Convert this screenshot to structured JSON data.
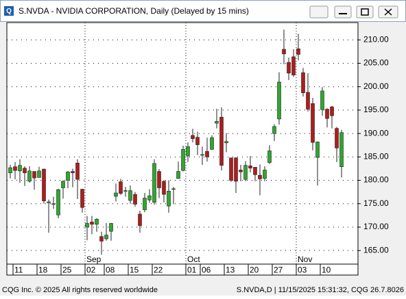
{
  "window_title": "S.NVDA - NVIDIA CORPORATION, Daily (Delayed by 15 mins)",
  "footer": {
    "left": "CQG Inc. © 2025 All rights reserved worldwide",
    "right": "S.NVDA,D | 11/15/2025 15:31:32, CQG 26.7.8026"
  },
  "chart_data": {
    "type": "candlestick",
    "categories": [
      null,
      "11",
      null,
      null,
      null,
      null,
      "18",
      null,
      null,
      null,
      null,
      "25",
      null,
      null,
      null,
      null,
      "02",
      null,
      null,
      null,
      "08",
      null,
      null,
      null,
      null,
      "15",
      null,
      null,
      null,
      null,
      "22",
      null,
      null,
      null,
      null,
      null,
      null,
      "01",
      null,
      null,
      "06",
      null,
      null,
      null,
      null,
      "13",
      null,
      null,
      null,
      null,
      "20",
      null,
      null,
      null,
      null,
      "27",
      null,
      null,
      null,
      null,
      "03",
      null,
      null,
      null,
      null,
      "10",
      null,
      null,
      null,
      null
    ],
    "months": [
      null,
      null,
      null,
      null,
      null,
      null,
      null,
      null,
      null,
      null,
      null,
      null,
      null,
      null,
      null,
      null,
      "Sep",
      null,
      null,
      null,
      null,
      null,
      null,
      null,
      null,
      null,
      null,
      null,
      null,
      null,
      null,
      null,
      null,
      null,
      null,
      null,
      null,
      "Oct",
      null,
      null,
      null,
      null,
      null,
      null,
      null,
      null,
      null,
      null,
      null,
      null,
      null,
      null,
      null,
      null,
      null,
      null,
      null,
      null,
      null,
      null,
      "Nov",
      null,
      null,
      null,
      null,
      null,
      null,
      null,
      null,
      null
    ],
    "open": [
      181.6,
      182.9,
      182.0,
      182.6,
      179.8,
      181.9,
      180.6,
      182.4,
      175.2,
      174.9,
      172.6,
      178.4,
      180.0,
      181.9,
      183.7,
      178.1,
      170.0,
      171.1,
      170.6,
      168.0,
      167.5,
      169.1,
      176.6,
      179.7,
      177.8,
      175.7,
      177.0,
      172.8,
      173.7,
      175.8,
      175.3,
      181.9,
      179.8,
      174.5,
      178.2,
      180.4,
      182.1,
      185.2,
      189.6,
      189.2,
      185.5,
      186.2,
      186.6,
      192.2,
      193.5,
      188.0,
      184.8,
      184.8,
      182.2,
      180.2,
      183.1,
      182.8,
      181.1,
      180.4,
      183.8,
      190.0,
      193.1,
      208.0,
      205.2,
      206.4,
      208.1,
      203.0,
      198.8,
      196.4,
      184.9,
      195.1,
      195.2,
      195.7,
      191.1,
      182.9
    ],
    "high": [
      183.3,
      183.9,
      184.5,
      183.0,
      183.0,
      181.9,
      182.9,
      182.5,
      175.9,
      176.5,
      178.2,
      180.0,
      182.0,
      182.5,
      184.5,
      178.2,
      172.4,
      172.4,
      171.9,
      169.0,
      170.9,
      170.9,
      179.3,
      180.3,
      178.6,
      178.9,
      177.5,
      173.5,
      177.3,
      178.1,
      184.5,
      182.4,
      180.0,
      180.0,
      178.6,
      184.0,
      187.4,
      188.1,
      191.0,
      190.4,
      187.2,
      189.1,
      189.6,
      195.3,
      195.6,
      190.1,
      184.8,
      184.9,
      183.3,
      184.1,
      185.2,
      182.8,
      183.4,
      183.0,
      187.5,
      192.0,
      203.1,
      212.2,
      206.2,
      208.0,
      211.3,
      204.0,
      202.9,
      197.6,
      188.3,
      199.9,
      195.4,
      195.9,
      191.4,
      190.8
    ],
    "low": [
      180.4,
      180.2,
      179.5,
      178.8,
      179.5,
      178.0,
      180.6,
      175.0,
      168.8,
      173.9,
      171.9,
      176.1,
      178.3,
      178.5,
      176.0,
      173.1,
      167.2,
      168.5,
      169.0,
      164.1,
      167.1,
      167.1,
      175.5,
      176.9,
      176.5,
      175.0,
      174.4,
      168.8,
      173.2,
      175.2,
      174.8,
      176.2,
      175.3,
      173.1,
      174.9,
      180.3,
      181.9,
      183.9,
      188.1,
      185.4,
      183.3,
      184.0,
      186.5,
      191.1,
      182.1,
      186.0,
      179.7,
      177.3,
      179.8,
      179.8,
      181.7,
      179.8,
      176.8,
      179.8,
      183.5,
      188.4,
      191.9,
      204.8,
      201.4,
      202.1,
      205.6,
      197.9,
      194.7,
      186.4,
      178.9,
      193.8,
      191.3,
      191.1,
      183.9,
      180.6
    ],
    "close": [
      182.7,
      182.1,
      183.2,
      181.6,
      182.0,
      180.5,
      182.0,
      175.6,
      175.4,
      175.0,
      178.0,
      179.8,
      181.8,
      181.6,
      180.2,
      174.2,
      170.8,
      170.6,
      171.7,
      167.0,
      168.3,
      170.8,
      177.3,
      177.2,
      177.8,
      177.8,
      174.9,
      170.3,
      176.2,
      176.7,
      183.6,
      178.4,
      177.0,
      177.7,
      178.2,
      181.9,
      186.6,
      187.2,
      188.9,
      187.6,
      185.5,
      185.0,
      189.1,
      192.6,
      183.2,
      188.3,
      180.0,
      179.8,
      181.8,
      183.2,
      182.6,
      181.2,
      180.3,
      182.2,
      186.3,
      191.5,
      201.0,
      207.0,
      202.9,
      202.5,
      206.9,
      198.7,
      195.2,
      188.1,
      188.2,
      199.1,
      193.2,
      193.8,
      186.9,
      190.2
    ],
    "up_color": "#2ea82e",
    "down_color": "#b01c1c",
    "ylim": [
      162.1,
      213.7
    ],
    "yticks": [
      {
        "value": 165,
        "label": "165.00"
      },
      {
        "value": 170,
        "label": "170.00"
      },
      {
        "value": 175,
        "label": "175.00"
      },
      {
        "value": 180,
        "label": "180.00"
      },
      {
        "value": 185,
        "label": "185.00"
      },
      {
        "value": 190,
        "label": "190.00"
      },
      {
        "value": 195,
        "label": "195.00"
      },
      {
        "value": 200,
        "label": "200.00"
      },
      {
        "value": 205,
        "label": "205.00"
      },
      {
        "value": 210,
        "label": "210.00"
      }
    ],
    "grid": true
  }
}
